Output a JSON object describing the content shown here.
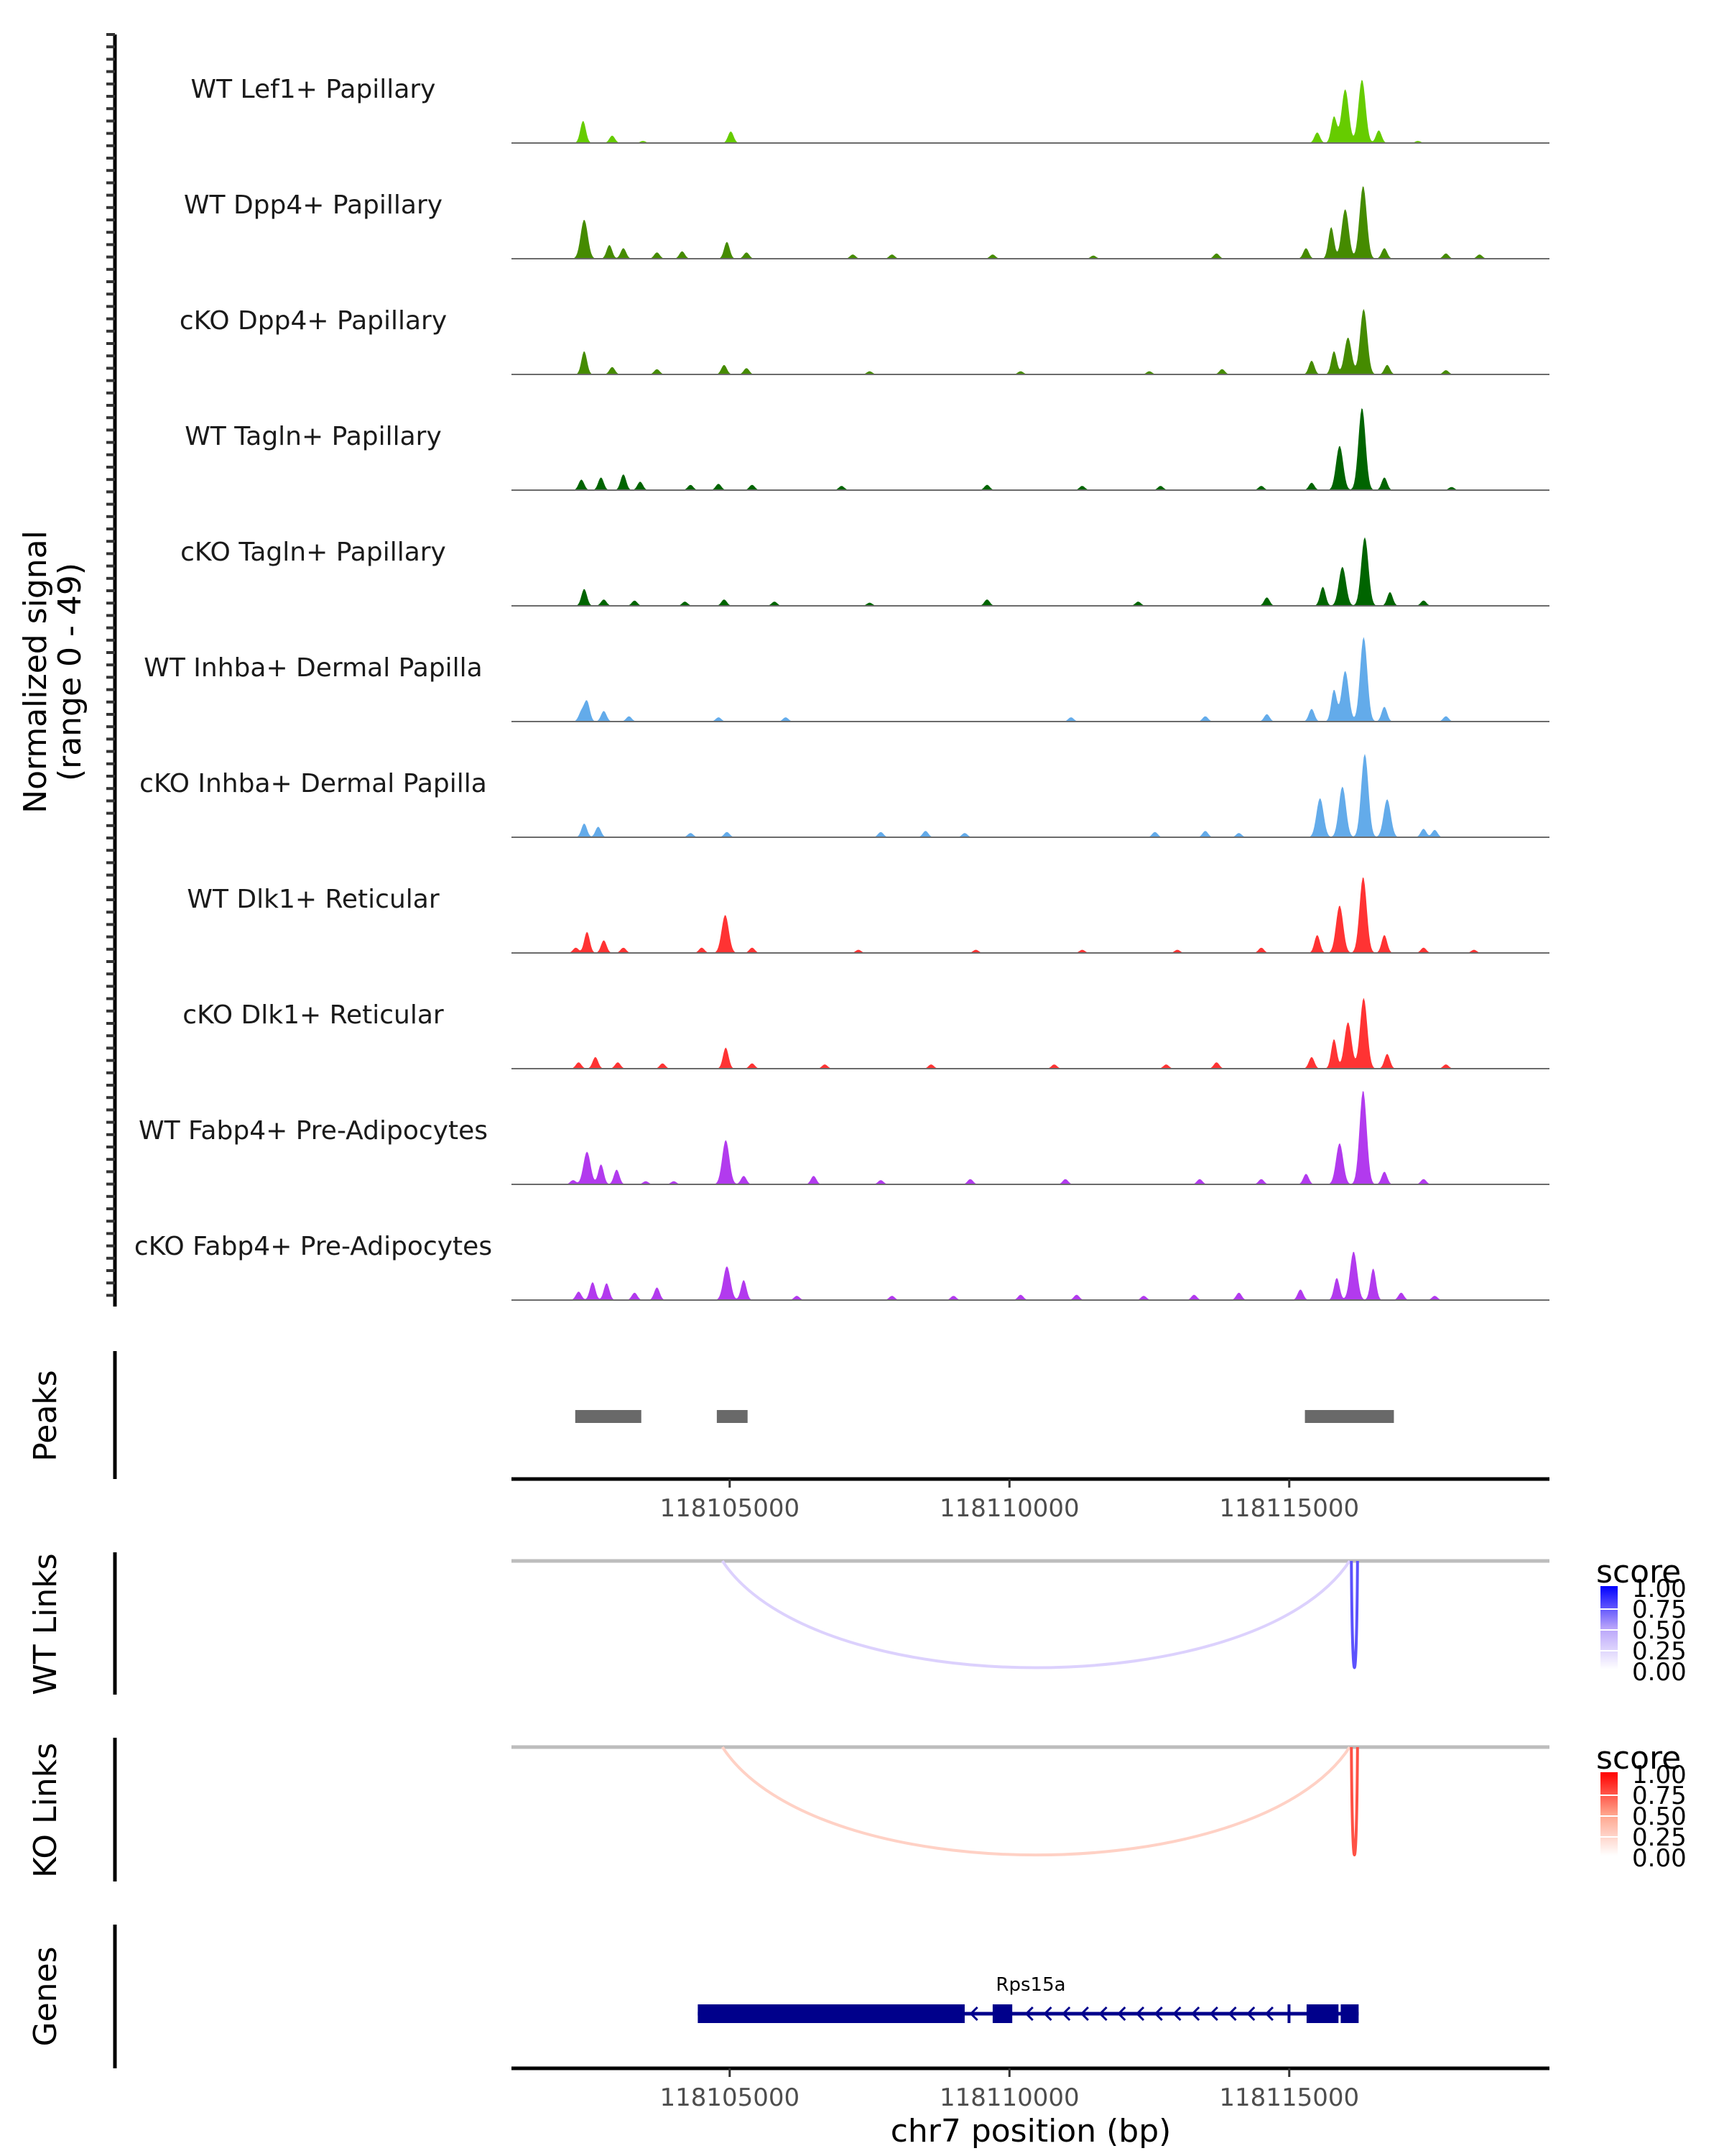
{
  "chart_data": {
    "type": "area",
    "title": "",
    "region": {
      "chrom": "chr7",
      "start": 118101100,
      "end": 118119650
    },
    "ylabel": "Normalized signal\n(range 0 - 49)",
    "ylabel_lines": [
      "Normalized signal",
      "(range 0 - 49)"
    ],
    "ylim": [
      0,
      49
    ],
    "xlabel": "chr7 position (bp)",
    "xticks": [
      118105000,
      118110000,
      118115000
    ],
    "xtick_labels": [
      "118105000",
      "118110000",
      "118115000"
    ],
    "tracks": [
      {
        "name": "WT Lef1+ Papillary",
        "color": "#66CC00",
        "peaks": [
          [
            118102380,
            0.21
          ],
          [
            118102900,
            0.07
          ],
          [
            118103450,
            0.02
          ],
          [
            118105020,
            0.11
          ],
          [
            118115500,
            0.1
          ],
          [
            118115800,
            0.25
          ],
          [
            118116000,
            0.51
          ],
          [
            118116300,
            0.6
          ],
          [
            118116600,
            0.12
          ],
          [
            118117300,
            0.02
          ]
        ]
      },
      {
        "name": "WT Dpp4+ Papillary",
        "color": "#458B00",
        "peaks": [
          [
            118102400,
            0.37
          ],
          [
            118102850,
            0.13
          ],
          [
            118103100,
            0.1
          ],
          [
            118103700,
            0.06
          ],
          [
            118104150,
            0.07
          ],
          [
            118104950,
            0.16
          ],
          [
            118105300,
            0.06
          ],
          [
            118107200,
            0.04
          ],
          [
            118107900,
            0.04
          ],
          [
            118109700,
            0.04
          ],
          [
            118111500,
            0.03
          ],
          [
            118113700,
            0.05
          ],
          [
            118115300,
            0.1
          ],
          [
            118115750,
            0.3
          ],
          [
            118116000,
            0.47
          ],
          [
            118116320,
            0.69
          ],
          [
            118116700,
            0.1
          ],
          [
            118117800,
            0.05
          ],
          [
            118118400,
            0.04
          ]
        ]
      },
      {
        "name": "cKO Dpp4+ Papillary",
        "color": "#458B00",
        "peaks": [
          [
            118102400,
            0.22
          ],
          [
            118102900,
            0.07
          ],
          [
            118103700,
            0.05
          ],
          [
            118104900,
            0.09
          ],
          [
            118105300,
            0.06
          ],
          [
            118107500,
            0.03
          ],
          [
            118110200,
            0.03
          ],
          [
            118112500,
            0.03
          ],
          [
            118113800,
            0.05
          ],
          [
            118115400,
            0.13
          ],
          [
            118115800,
            0.22
          ],
          [
            118116050,
            0.35
          ],
          [
            118116330,
            0.62
          ],
          [
            118116750,
            0.09
          ],
          [
            118117800,
            0.04
          ]
        ]
      },
      {
        "name": "WT Tagln+ Papillary",
        "color": "#006400",
        "peaks": [
          [
            118102350,
            0.1
          ],
          [
            118102700,
            0.12
          ],
          [
            118103100,
            0.15
          ],
          [
            118103400,
            0.08
          ],
          [
            118104300,
            0.05
          ],
          [
            118104800,
            0.06
          ],
          [
            118105400,
            0.05
          ],
          [
            118107000,
            0.04
          ],
          [
            118109600,
            0.05
          ],
          [
            118111300,
            0.04
          ],
          [
            118112700,
            0.04
          ],
          [
            118114500,
            0.04
          ],
          [
            118115400,
            0.07
          ],
          [
            118115900,
            0.42
          ],
          [
            118116300,
            0.78
          ],
          [
            118116700,
            0.12
          ],
          [
            118117900,
            0.03
          ]
        ]
      },
      {
        "name": "cKO Tagln+ Papillary",
        "color": "#006400",
        "peaks": [
          [
            118102400,
            0.16
          ],
          [
            118102750,
            0.06
          ],
          [
            118103300,
            0.05
          ],
          [
            118104200,
            0.04
          ],
          [
            118104900,
            0.06
          ],
          [
            118105800,
            0.04
          ],
          [
            118107500,
            0.03
          ],
          [
            118109600,
            0.06
          ],
          [
            118112300,
            0.04
          ],
          [
            118114600,
            0.08
          ],
          [
            118115600,
            0.18
          ],
          [
            118115950,
            0.37
          ],
          [
            118116350,
            0.65
          ],
          [
            118116800,
            0.13
          ],
          [
            118117400,
            0.05
          ]
        ]
      },
      {
        "name": "WT Inhba+ Dermal Papilla",
        "color": "#63ABEA",
        "peaks": [
          [
            118102350,
            0.09
          ],
          [
            118102450,
            0.19
          ],
          [
            118102750,
            0.1
          ],
          [
            118103200,
            0.05
          ],
          [
            118104800,
            0.04
          ],
          [
            118106000,
            0.04
          ],
          [
            118111100,
            0.04
          ],
          [
            118113500,
            0.05
          ],
          [
            118114600,
            0.07
          ],
          [
            118115400,
            0.12
          ],
          [
            118115800,
            0.3
          ],
          [
            118116000,
            0.48
          ],
          [
            118116330,
            0.8
          ],
          [
            118116700,
            0.14
          ],
          [
            118117800,
            0.05
          ]
        ]
      },
      {
        "name": "cKO Inhba+ Dermal Papilla",
        "color": "#63ABEA",
        "peaks": [
          [
            118102400,
            0.13
          ],
          [
            118102650,
            0.1
          ],
          [
            118104300,
            0.04
          ],
          [
            118104950,
            0.05
          ],
          [
            118107700,
            0.05
          ],
          [
            118108500,
            0.06
          ],
          [
            118109200,
            0.04
          ],
          [
            118112600,
            0.05
          ],
          [
            118113500,
            0.06
          ],
          [
            118114100,
            0.04
          ],
          [
            118115550,
            0.37
          ],
          [
            118115950,
            0.48
          ],
          [
            118116350,
            0.79
          ],
          [
            118116750,
            0.36
          ],
          [
            118117400,
            0.08
          ],
          [
            118117600,
            0.07
          ]
        ]
      },
      {
        "name": "WT Dlk1+ Reticular",
        "color": "#FF3333",
        "peaks": [
          [
            118102250,
            0.05
          ],
          [
            118102450,
            0.2
          ],
          [
            118102750,
            0.12
          ],
          [
            118103100,
            0.05
          ],
          [
            118104500,
            0.05
          ],
          [
            118104920,
            0.36
          ],
          [
            118105400,
            0.05
          ],
          [
            118107300,
            0.03
          ],
          [
            118109400,
            0.03
          ],
          [
            118111300,
            0.03
          ],
          [
            118113000,
            0.03
          ],
          [
            118114500,
            0.05
          ],
          [
            118115500,
            0.17
          ],
          [
            118115900,
            0.45
          ],
          [
            118116320,
            0.72
          ],
          [
            118116700,
            0.17
          ],
          [
            118117400,
            0.05
          ],
          [
            118118300,
            0.03
          ]
        ]
      },
      {
        "name": "cKO Dlk1+ Reticular",
        "color": "#FF3333",
        "peaks": [
          [
            118102300,
            0.06
          ],
          [
            118102600,
            0.11
          ],
          [
            118103000,
            0.06
          ],
          [
            118103800,
            0.05
          ],
          [
            118104930,
            0.2
          ],
          [
            118105400,
            0.05
          ],
          [
            118106700,
            0.04
          ],
          [
            118108600,
            0.04
          ],
          [
            118110800,
            0.04
          ],
          [
            118112800,
            0.04
          ],
          [
            118113700,
            0.06
          ],
          [
            118115400,
            0.11
          ],
          [
            118115800,
            0.28
          ],
          [
            118116050,
            0.44
          ],
          [
            118116330,
            0.67
          ],
          [
            118116750,
            0.14
          ],
          [
            118117800,
            0.04
          ]
        ]
      },
      {
        "name": "WT Fabp4+ Pre-Adipocytes",
        "color": "#B23AEE",
        "peaks": [
          [
            118102200,
            0.04
          ],
          [
            118102450,
            0.31
          ],
          [
            118102700,
            0.19
          ],
          [
            118102980,
            0.14
          ],
          [
            118103500,
            0.03
          ],
          [
            118104000,
            0.03
          ],
          [
            118104930,
            0.42
          ],
          [
            118105250,
            0.08
          ],
          [
            118106500,
            0.08
          ],
          [
            118107700,
            0.04
          ],
          [
            118109300,
            0.05
          ],
          [
            118111000,
            0.05
          ],
          [
            118113400,
            0.05
          ],
          [
            118114500,
            0.05
          ],
          [
            118115300,
            0.1
          ],
          [
            118115900,
            0.39
          ],
          [
            118116320,
            0.89
          ],
          [
            118116700,
            0.12
          ],
          [
            118117400,
            0.05
          ]
        ]
      },
      {
        "name": "cKO Fabp4+ Pre-Adipocytes",
        "color": "#B23AEE",
        "peaks": [
          [
            118102300,
            0.08
          ],
          [
            118102550,
            0.17
          ],
          [
            118102800,
            0.16
          ],
          [
            118103300,
            0.07
          ],
          [
            118103700,
            0.12
          ],
          [
            118104950,
            0.32
          ],
          [
            118105250,
            0.19
          ],
          [
            118106200,
            0.04
          ],
          [
            118107900,
            0.04
          ],
          [
            118109000,
            0.04
          ],
          [
            118110200,
            0.05
          ],
          [
            118111200,
            0.05
          ],
          [
            118112400,
            0.04
          ],
          [
            118113300,
            0.05
          ],
          [
            118114100,
            0.07
          ],
          [
            118115200,
            0.1
          ],
          [
            118115850,
            0.21
          ],
          [
            118116150,
            0.46
          ],
          [
            118116500,
            0.3
          ],
          [
            118117000,
            0.07
          ],
          [
            118117600,
            0.04
          ]
        ]
      }
    ],
    "peaks_track": {
      "label": "Peaks",
      "color": "#696969",
      "regions": [
        [
          118102240,
          118103420
        ],
        [
          118104770,
          118105320
        ],
        [
          118115280,
          118116870
        ]
      ]
    },
    "links": [
      {
        "label": "WT Links",
        "legend_title": "score",
        "low_color": "#FFFFFF",
        "high_color": "#0000FF",
        "legend_ticks": [
          "1.00",
          "0.75",
          "0.50",
          "0.25",
          "0.00"
        ],
        "arcs": [
          {
            "start": 118104870,
            "end": 118116080,
            "score": 0.25
          },
          {
            "start": 118116110,
            "end": 118116220,
            "score": 0.75
          }
        ]
      },
      {
        "label": "KO Links",
        "legend_title": "score",
        "low_color": "#FFFFFF",
        "high_color": "#FF0000",
        "legend_ticks": [
          "1.00",
          "0.75",
          "0.50",
          "0.25",
          "0.00"
        ],
        "arcs": [
          {
            "start": 118104870,
            "end": 118116080,
            "score": 0.25
          },
          {
            "start": 118116110,
            "end": 118116220,
            "score": 0.75
          }
        ]
      }
    ],
    "genes": {
      "label": "Genes",
      "color": "#00008B",
      "name": "Rps15a",
      "strand": "-",
      "start": 118104430,
      "end": 118116240,
      "exons": [
        [
          118104430,
          118109200
        ],
        [
          118109700,
          118110050
        ],
        [
          118114970,
          118115000
        ],
        [
          118115310,
          118115880
        ],
        [
          118115920,
          118116240
        ]
      ]
    }
  }
}
